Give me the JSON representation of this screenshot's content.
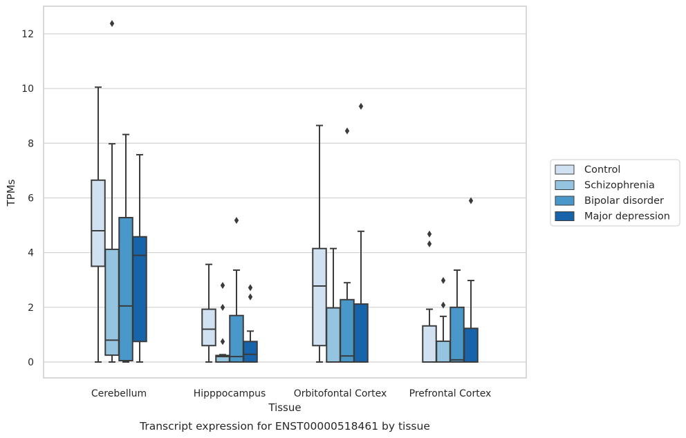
{
  "caption": "Transcript expression for ENST00000518461 by tissue",
  "chart_data": {
    "type": "boxplot",
    "xlabel": "Tissue",
    "ylabel": "TPMs",
    "ylim": [
      -0.6,
      13.0
    ],
    "yticks": [
      0,
      2,
      4,
      6,
      8,
      10,
      12
    ],
    "ytick_labels": [
      "0",
      "2",
      "4",
      "6",
      "8",
      "10",
      "12"
    ],
    "grid": "horizontal",
    "legend_position": "right",
    "categories": [
      "Cerebellum",
      "Hipppocampus",
      "Orbitofontal Cortex",
      "Prefrontal Cortex"
    ],
    "series": [
      {
        "name": "Control",
        "color": "#d0e1f2",
        "boxes": [
          {
            "whisker_low": 0,
            "q1": 3.5,
            "median": 4.8,
            "q3": 6.65,
            "whisker_high": 10.05,
            "outliers": []
          },
          {
            "whisker_low": 0,
            "q1": 0.6,
            "median": 1.2,
            "q3": 1.93,
            "whisker_high": 3.57,
            "outliers": []
          },
          {
            "whisker_low": 0,
            "q1": 0.6,
            "median": 2.78,
            "q3": 4.15,
            "whisker_high": 8.65,
            "outliers": []
          },
          {
            "whisker_low": 0,
            "q1": 0,
            "median": 0,
            "q3": 1.32,
            "whisker_high": 1.93,
            "outliers": [
              4.32,
              4.68
            ]
          }
        ]
      },
      {
        "name": "Schizophrenia",
        "color": "#94c4df",
        "boxes": [
          {
            "whisker_low": 0,
            "q1": 0.25,
            "median": 0.8,
            "q3": 4.12,
            "whisker_high": 7.98,
            "outliers": [
              12.38
            ]
          },
          {
            "whisker_low": 0,
            "q1": 0,
            "median": 0.2,
            "q3": 0.24,
            "whisker_high": 0.27,
            "outliers": [
              0.75,
              2.0,
              2.8
            ]
          },
          {
            "whisker_low": 0,
            "q1": 0,
            "median": 0,
            "q3": 1.98,
            "whisker_high": 4.15,
            "outliers": []
          },
          {
            "whisker_low": 0,
            "q1": 0,
            "median": 0,
            "q3": 0.76,
            "whisker_high": 1.67,
            "outliers": [
              2.08,
              2.98
            ]
          }
        ]
      },
      {
        "name": "Bipolar disorder",
        "color": "#4a98c9",
        "boxes": [
          {
            "whisker_low": 0,
            "q1": 0.05,
            "median": 2.05,
            "q3": 5.28,
            "whisker_high": 8.32,
            "outliers": []
          },
          {
            "whisker_low": 0,
            "q1": 0,
            "median": 0.2,
            "q3": 1.7,
            "whisker_high": 3.36,
            "outliers": [
              5.18
            ]
          },
          {
            "whisker_low": 0,
            "q1": 0,
            "median": 0.22,
            "q3": 2.28,
            "whisker_high": 2.9,
            "outliers": [
              8.45
            ]
          },
          {
            "whisker_low": 0,
            "q1": 0,
            "median": 0.08,
            "q3": 2.0,
            "whisker_high": 3.36,
            "outliers": []
          }
        ]
      },
      {
        "name": "Major depression",
        "color": "#1764ab",
        "boxes": [
          {
            "whisker_low": 0,
            "q1": 0.75,
            "median": 3.9,
            "q3": 4.58,
            "whisker_high": 7.58,
            "outliers": []
          },
          {
            "whisker_low": 0,
            "q1": 0,
            "median": 0.28,
            "q3": 0.75,
            "whisker_high": 1.13,
            "outliers": [
              2.38,
              2.72
            ]
          },
          {
            "whisker_low": 0,
            "q1": 0,
            "median": 0,
            "q3": 2.12,
            "whisker_high": 4.78,
            "outliers": [
              9.35
            ]
          },
          {
            "whisker_low": 0,
            "q1": 0,
            "median": 0,
            "q3": 1.23,
            "whisker_high": 2.98,
            "outliers": [
              5.9
            ]
          }
        ]
      }
    ]
  }
}
